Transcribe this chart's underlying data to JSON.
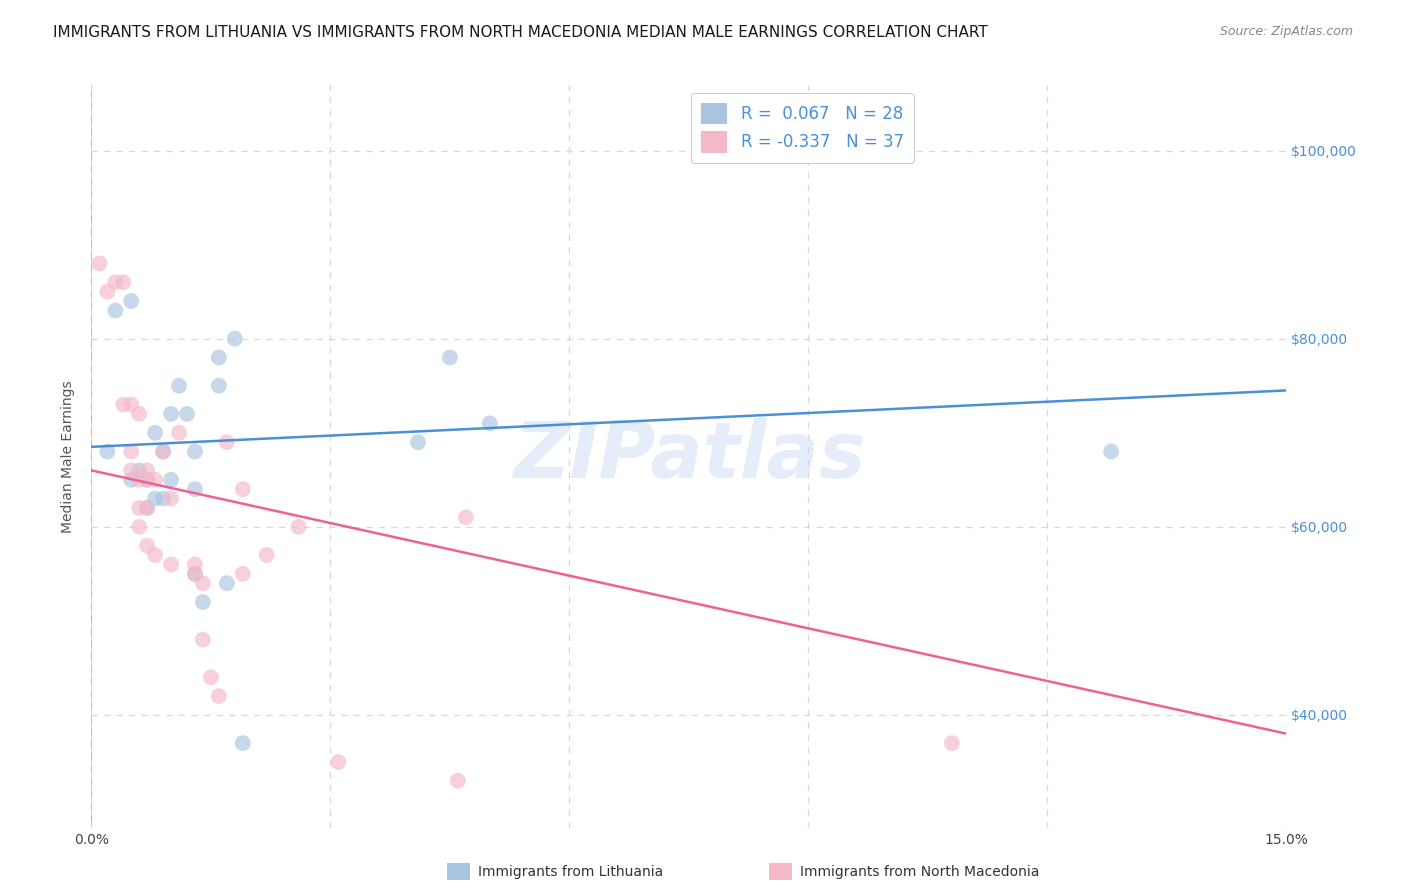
{
  "title": "IMMIGRANTS FROM LITHUANIA VS IMMIGRANTS FROM NORTH MACEDONIA MEDIAN MALE EARNINGS CORRELATION CHART",
  "source": "Source: ZipAtlas.com",
  "ylabel": "Median Male Earnings",
  "xlim": [
    0.0,
    0.15
  ],
  "ylim": [
    28000,
    107000
  ],
  "plot_ylim": [
    28000,
    107000
  ],
  "yticks": [
    40000,
    60000,
    80000,
    100000
  ],
  "ytick_labels": [
    "$40,000",
    "$60,000",
    "$80,000",
    "$100,000"
  ],
  "xticks": [
    0.0,
    0.03,
    0.06,
    0.09,
    0.12,
    0.15
  ],
  "xtick_labels": [
    "0.0%",
    "",
    "",
    "",
    "",
    "15.0%"
  ],
  "background_color": "#ffffff",
  "grid_color": "#d8d8d8",
  "lithuania_color": "#a8c4e0",
  "north_macedonia_color": "#f4b8c8",
  "lithuania_line_color": "#4a90d9",
  "north_macedonia_line_color": "#f06090",
  "legend_R_lith": "0.067",
  "legend_N_lith": "28",
  "legend_R_mac": "-0.337",
  "legend_N_mac": "37",
  "watermark": "ZIPatlas",
  "lith_line_y0": 68500,
  "lith_line_y1": 74500,
  "mac_line_y0": 66000,
  "mac_line_y1": 38000,
  "lithuania_x": [
    0.002,
    0.003,
    0.005,
    0.005,
    0.006,
    0.007,
    0.007,
    0.008,
    0.008,
    0.009,
    0.009,
    0.01,
    0.01,
    0.011,
    0.012,
    0.013,
    0.013,
    0.013,
    0.014,
    0.016,
    0.016,
    0.017,
    0.018,
    0.019,
    0.041,
    0.045,
    0.05,
    0.128
  ],
  "lithuania_y": [
    68000,
    83000,
    65000,
    84000,
    66000,
    62000,
    65000,
    70000,
    63000,
    68000,
    63000,
    65000,
    72000,
    75000,
    72000,
    64000,
    68000,
    55000,
    52000,
    78000,
    75000,
    54000,
    80000,
    37000,
    69000,
    78000,
    71000,
    68000
  ],
  "north_macedonia_x": [
    0.001,
    0.002,
    0.003,
    0.004,
    0.004,
    0.005,
    0.005,
    0.005,
    0.006,
    0.006,
    0.006,
    0.006,
    0.007,
    0.007,
    0.007,
    0.007,
    0.008,
    0.008,
    0.009,
    0.01,
    0.01,
    0.011,
    0.013,
    0.013,
    0.014,
    0.014,
    0.015,
    0.016,
    0.017,
    0.019,
    0.019,
    0.022,
    0.026,
    0.031,
    0.047,
    0.108,
    0.046
  ],
  "north_macedonia_y": [
    88000,
    85000,
    86000,
    73000,
    86000,
    66000,
    73000,
    68000,
    72000,
    65000,
    62000,
    60000,
    66000,
    65000,
    62000,
    58000,
    65000,
    57000,
    68000,
    63000,
    56000,
    70000,
    55000,
    56000,
    48000,
    54000,
    44000,
    42000,
    69000,
    55000,
    64000,
    57000,
    60000,
    35000,
    61000,
    37000,
    33000
  ],
  "title_fontsize": 11,
  "axis_label_fontsize": 10,
  "tick_fontsize": 10,
  "legend_fontsize": 12,
  "marker_size": 130,
  "marker_alpha": 0.65
}
